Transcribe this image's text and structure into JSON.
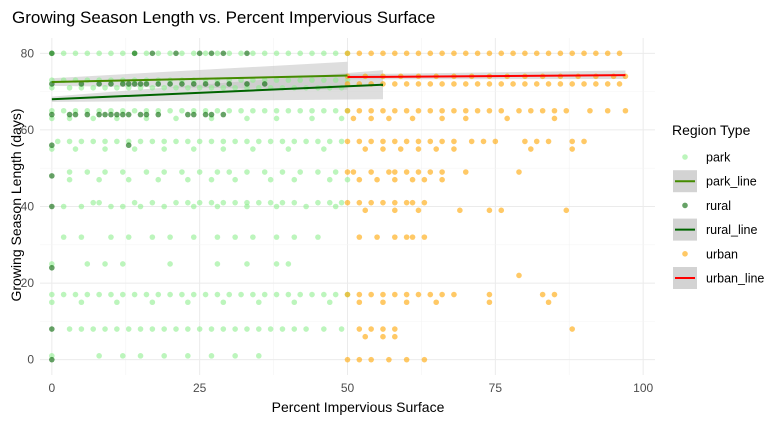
{
  "chart_data": {
    "type": "scatter",
    "title": "Growing Season Length vs. Percent Impervious Surface",
    "xlabel": "Percent Impervious Surface",
    "ylabel": "Growing Season Length (days)",
    "xlim": [
      -2,
      102
    ],
    "ylim": [
      -4,
      84
    ],
    "xticks": [
      0,
      25,
      50,
      75,
      100
    ],
    "yticks": [
      0,
      20,
      40,
      60,
      80
    ],
    "grid": true,
    "legend": {
      "title": "Region Type",
      "position": "right",
      "entries": [
        "park",
        "park_line",
        "rural",
        "rural_line",
        "urban",
        "urban_line"
      ]
    },
    "colors": {
      "park": "#90EE90",
      "rural": "#006400",
      "urban": "#FFA500",
      "park_line": "#458B00",
      "rural_line": "#006400",
      "urban_line": "#FF0000",
      "ribbon": "#BEBEBE"
    },
    "series": [
      {
        "name": "park",
        "rows": [
          {
            "y": 80,
            "x": [
              0,
              2,
              4,
              6,
              8,
              10,
              12,
              14,
              16,
              18,
              20,
              22,
              24,
              26,
              28,
              30,
              32,
              34,
              36,
              38,
              40,
              42,
              44,
              46,
              48,
              50
            ]
          },
          {
            "y": 73,
            "x": [
              0,
              2,
              4,
              6,
              8,
              10,
              12,
              14,
              16,
              18,
              20,
              22,
              24,
              26,
              28,
              30,
              32,
              34,
              36,
              38,
              40,
              42,
              44,
              46,
              48,
              50
            ]
          },
          {
            "y": 71,
            "x": [
              0,
              3,
              5,
              7,
              9,
              11,
              13,
              15,
              17,
              19,
              21,
              23,
              25,
              27,
              29,
              31,
              33,
              35,
              37,
              39,
              41,
              43,
              45,
              47,
              49
            ]
          },
          {
            "y": 65,
            "x": [
              0,
              2,
              4,
              6,
              8,
              10,
              12,
              14,
              16,
              18,
              20,
              22,
              24,
              26,
              28,
              30,
              32,
              34,
              36,
              38,
              40,
              42,
              44,
              46,
              48,
              50
            ]
          },
          {
            "y": 63,
            "x": [
              0,
              3,
              7,
              11,
              16,
              21,
              27,
              33,
              38,
              44,
              49
            ]
          },
          {
            "y": 57,
            "x": [
              1,
              3,
              5,
              7,
              9,
              11,
              13,
              15,
              17,
              19,
              21,
              23,
              25,
              27,
              29,
              31,
              33,
              35,
              37,
              39,
              41,
              43,
              45,
              47,
              49
            ]
          },
          {
            "y": 55,
            "x": [
              0,
              4,
              9,
              14,
              19,
              24,
              29,
              34,
              40,
              46
            ]
          },
          {
            "y": 49,
            "x": [
              3,
              6,
              9,
              12,
              16,
              19,
              22,
              25,
              28,
              30,
              33,
              36,
              39,
              42,
              45,
              48
            ]
          },
          {
            "y": 47,
            "x": [
              3,
              8,
              13,
              18,
              23,
              27,
              31,
              37,
              41,
              47,
              50
            ]
          },
          {
            "y": 41,
            "x": [
              7,
              8,
              14,
              17,
              21,
              23,
              25,
              27,
              29,
              31,
              33,
              35,
              37,
              39,
              41,
              45,
              47,
              49
            ]
          },
          {
            "y": 40,
            "x": [
              2,
              5,
              10,
              12,
              15,
              19,
              24,
              28,
              33,
              38,
              43,
              48
            ]
          },
          {
            "y": 32,
            "x": [
              2,
              5,
              10,
              13,
              17,
              20,
              24,
              28,
              31,
              34,
              38,
              41,
              45
            ]
          },
          {
            "y": 25,
            "x": [
              0,
              6,
              9,
              12,
              20,
              28,
              33,
              38,
              40
            ]
          },
          {
            "y": 17,
            "x": [
              0,
              2,
              4,
              6,
              8,
              10,
              12,
              14,
              16,
              18,
              20,
              22,
              24,
              26,
              28,
              30,
              32,
              34,
              36,
              38,
              40,
              42,
              44,
              46,
              48,
              50
            ]
          },
          {
            "y": 15,
            "x": [
              0,
              5,
              11,
              17,
              23,
              29,
              35,
              41,
              47
            ]
          },
          {
            "y": 8,
            "x": [
              3,
              5,
              7,
              9,
              11,
              13,
              15,
              17,
              19,
              21,
              23,
              25,
              27,
              29,
              31,
              33,
              35,
              37,
              39,
              41,
              43,
              46,
              49
            ]
          },
          {
            "y": 1,
            "x": [
              0,
              8,
              12,
              15,
              19,
              23,
              27,
              31,
              35
            ]
          }
        ]
      },
      {
        "name": "rural",
        "rows": [
          {
            "y": 80,
            "x": [
              0,
              14,
              17,
              21,
              25,
              27,
              29,
              33
            ]
          },
          {
            "y": 72,
            "x": [
              0,
              5,
              8,
              10,
              12,
              13,
              14,
              15,
              16,
              18,
              20,
              22,
              24,
              26,
              28,
              30,
              33,
              36
            ]
          },
          {
            "y": 64,
            "x": [
              0,
              3,
              4,
              6,
              8,
              9,
              10,
              11,
              12,
              13,
              15,
              16,
              18,
              23,
              24,
              26,
              27,
              29
            ]
          },
          {
            "y": 56,
            "x": [
              0,
              13
            ]
          },
          {
            "y": 48,
            "x": [
              0
            ]
          },
          {
            "y": 40,
            "x": [
              0
            ]
          },
          {
            "y": 24,
            "x": [
              0
            ]
          },
          {
            "y": 8,
            "x": [
              0
            ]
          },
          {
            "y": 0,
            "x": [
              0
            ]
          }
        ]
      },
      {
        "name": "urban",
        "rows": [
          {
            "y": 80,
            "x": [
              50,
              52,
              54,
              56,
              58,
              60,
              62,
              64,
              66,
              68,
              70,
              72,
              74,
              76,
              78,
              80,
              82,
              84,
              86,
              88,
              90,
              92,
              94,
              96
            ]
          },
          {
            "y": 74,
            "x": [
              50,
              53,
              56,
              59,
              62,
              65,
              68,
              71,
              74,
              77,
              80,
              83,
              86,
              89,
              92,
              95,
              97
            ]
          },
          {
            "y": 72,
            "x": [
              50,
              52,
              54,
              56,
              58,
              60,
              62,
              64,
              66,
              68,
              70,
              72,
              74,
              76,
              78,
              80,
              82,
              84,
              86,
              88,
              90,
              92,
              94,
              96
            ]
          },
          {
            "y": 65,
            "x": [
              50,
              52,
              54,
              56,
              58,
              60,
              62,
              64,
              66,
              68,
              70,
              72,
              74,
              76,
              79,
              81,
              83,
              85,
              87,
              91,
              94,
              97
            ]
          },
          {
            "y": 63,
            "x": [
              51,
              54,
              57,
              61,
              66,
              70,
              77,
              85
            ]
          },
          {
            "y": 57,
            "x": [
              50,
              52,
              54,
              56,
              58,
              60,
              62,
              64,
              66,
              68,
              71,
              73,
              75,
              80,
              82,
              84,
              88,
              90
            ]
          },
          {
            "y": 55,
            "x": [
              53,
              56,
              59,
              62,
              65,
              68,
              81,
              88
            ]
          },
          {
            "y": 49,
            "x": [
              50,
              51,
              54,
              57,
              58,
              60,
              62,
              64,
              66,
              70,
              79
            ]
          },
          {
            "y": 47,
            "x": [
              52,
              55,
              58,
              61,
              63,
              66
            ]
          },
          {
            "y": 41,
            "x": [
              50,
              52,
              54,
              56,
              58,
              60,
              61,
              63
            ]
          },
          {
            "y": 39,
            "x": [
              53,
              58,
              62,
              69,
              74,
              76,
              87
            ]
          },
          {
            "y": 32,
            "x": [
              52,
              55,
              58,
              60,
              61,
              63
            ]
          },
          {
            "y": 22,
            "x": [
              79
            ]
          },
          {
            "y": 17,
            "x": [
              50,
              52,
              54,
              56,
              58,
              60,
              62,
              64,
              66,
              68,
              74,
              83,
              85
            ]
          },
          {
            "y": 15,
            "x": [
              52,
              56,
              60,
              65,
              74,
              84
            ]
          },
          {
            "y": 8,
            "x": [
              52,
              54,
              56,
              58,
              88
            ]
          },
          {
            "y": 6,
            "x": [
              53,
              56,
              58
            ]
          },
          {
            "y": 0,
            "x": [
              50,
              52,
              54,
              57,
              60,
              63
            ]
          }
        ]
      }
    ],
    "lines": [
      {
        "name": "park_line",
        "x": [
          0,
          50
        ],
        "y": [
          72.5,
          74.2
        ],
        "lo": [
          71.5,
          70.5
        ],
        "hi": [
          73.5,
          77.8
        ]
      },
      {
        "name": "rural_line",
        "x": [
          0,
          56
        ],
        "y": [
          68,
          71.8
        ],
        "lo": [
          67.3,
          68
        ],
        "hi": [
          68.7,
          75.6
        ]
      },
      {
        "name": "urban_line",
        "x": [
          50,
          97
        ],
        "y": [
          73.8,
          74.3
        ],
        "lo": [
          73.2,
          73.3
        ],
        "hi": [
          74.5,
          75.5
        ]
      }
    ]
  }
}
